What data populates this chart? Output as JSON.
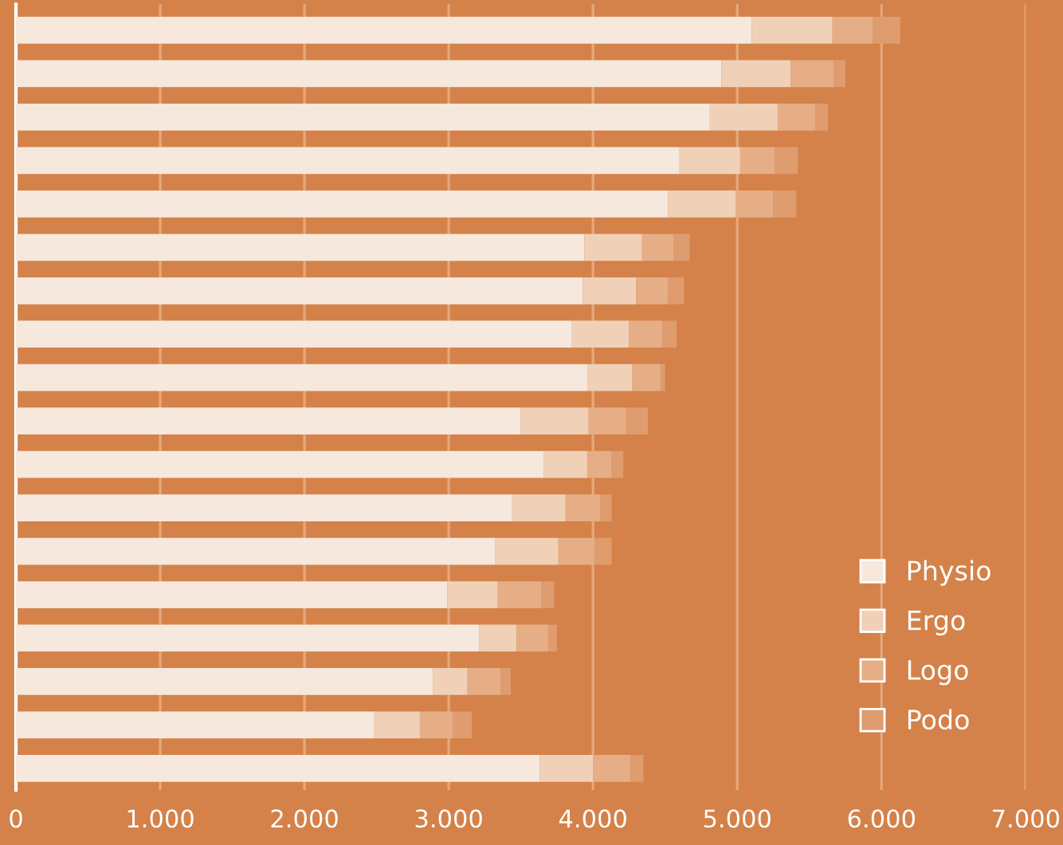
{
  "chart_data": {
    "type": "bar",
    "orientation": "horizontal",
    "stacked": true,
    "categories": [
      null,
      null,
      null,
      null,
      null,
      null,
      null,
      null,
      null,
      null,
      null,
      null,
      null,
      null,
      null,
      null,
      null,
      null
    ],
    "series": [
      {
        "name": "Physio",
        "color": "#f6e8dc",
        "values": [
          5100,
          4890,
          4810,
          4600,
          4520,
          3940,
          3930,
          3850,
          3960,
          3500,
          3660,
          3440,
          3320,
          2990,
          3210,
          2890,
          2480,
          3630
        ]
      },
      {
        "name": "Ergo",
        "color": "#f0d1b8",
        "values": [
          560,
          480,
          470,
          420,
          470,
          400,
          370,
          400,
          310,
          470,
          300,
          370,
          440,
          350,
          260,
          240,
          320,
          370
        ]
      },
      {
        "name": "Logo",
        "color": "#e6ae86",
        "values": [
          280,
          300,
          260,
          240,
          260,
          220,
          220,
          230,
          200,
          260,
          170,
          240,
          250,
          300,
          220,
          230,
          230,
          260
        ]
      },
      {
        "name": "Podo",
        "color": "#df9c6f",
        "values": [
          190,
          80,
          90,
          160,
          160,
          110,
          110,
          100,
          30,
          150,
          80,
          80,
          120,
          90,
          60,
          70,
          130,
          90
        ]
      }
    ],
    "xlim": [
      0,
      7000
    ],
    "xticks": [
      {
        "value": 0,
        "label": "0"
      },
      {
        "value": 1000,
        "label": "1.000"
      },
      {
        "value": 2000,
        "label": "2.000"
      },
      {
        "value": 3000,
        "label": "3.000"
      },
      {
        "value": 4000,
        "label": "4.000"
      },
      {
        "value": 5000,
        "label": "5.000"
      },
      {
        "value": 6000,
        "label": "6.000"
      },
      {
        "value": 7000,
        "label": "7.000"
      }
    ],
    "grid": "x",
    "legend": "bottom right"
  }
}
